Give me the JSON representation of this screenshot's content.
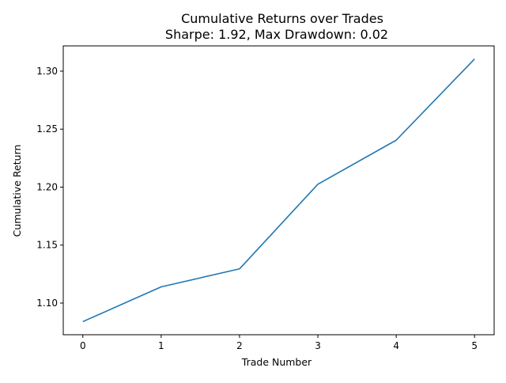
{
  "chart_data": {
    "type": "line",
    "title": "Cumulative Returns over Trades",
    "subtitle": "Sharpe: 1.92, Max Drawdown: 0.02",
    "xlabel": "Trade Number",
    "ylabel": "Cumulative Return",
    "x": [
      0,
      1,
      2,
      3,
      4,
      5
    ],
    "series": [
      {
        "values": [
          1.084,
          1.114,
          1.1295,
          1.2025,
          1.2405,
          1.3105
        ]
      }
    ],
    "xlim": [
      -0.25,
      5.25
    ],
    "ylim": [
      1.0727,
      1.3218
    ],
    "xticks": [
      "0",
      "1",
      "2",
      "3",
      "4",
      "5"
    ],
    "yticks": [
      "1.10",
      "1.15",
      "1.20",
      "1.25",
      "1.30"
    ],
    "grid": false,
    "line_color": "#1f77b4"
  }
}
